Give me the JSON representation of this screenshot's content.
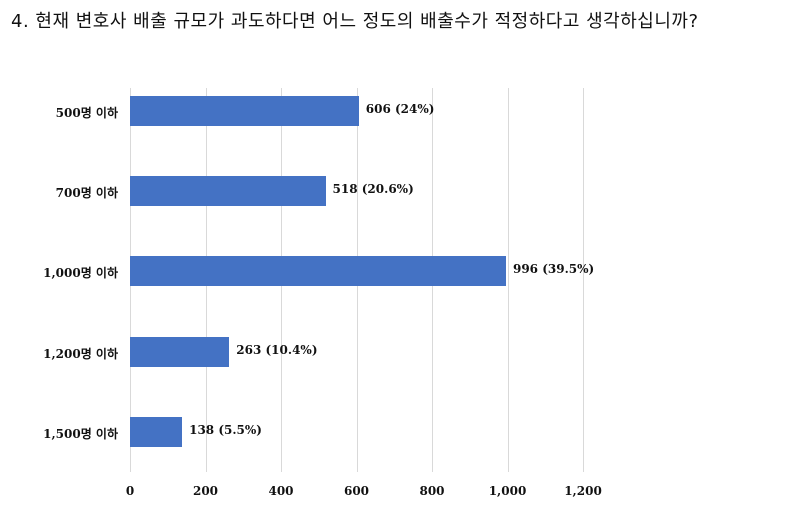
{
  "question": {
    "title": "4. 현재 변호사 배출 규모가 과도하다면 어느 정도의 배출수가 적정하다고 생각하십니까?"
  },
  "chart_data": {
    "type": "bar",
    "orientation": "horizontal",
    "title": "4. 현재 변호사 배출 규모가 과도하다면 어느 정도의 배출수가 적정하다고 생각하십니까?",
    "categories": [
      "500명 이하",
      "700명 이하",
      "1,000명 이하",
      "1,200명 이하",
      "1,500명 이하"
    ],
    "values": [
      606,
      518,
      996,
      263,
      138
    ],
    "percentages": [
      "24%",
      "20.6%",
      "39.5%",
      "10.4%",
      "5.5%"
    ],
    "data_labels": [
      "606  (24%)",
      "518  (20.6%)",
      "996  (39.5%)",
      "263  (10.4%)",
      "138  (5.5%)"
    ],
    "xlabel": "",
    "ylabel": "",
    "xlim": [
      0,
      1200
    ],
    "x_ticks": [
      "0",
      "200",
      "400",
      "600",
      "800",
      "1,000",
      "1,200"
    ],
    "grid": true,
    "legend": null,
    "bar_color": "#4472c4"
  }
}
